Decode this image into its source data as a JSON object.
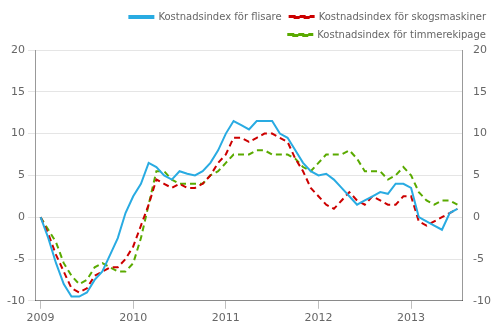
{
  "chart_data": {
    "type": "line",
    "x": [
      2009,
      2009.0833333333,
      2009.1666666667,
      2009.25,
      2009.3333333333,
      2009.4166666667,
      2009.5,
      2009.5833333333,
      2009.6666666667,
      2009.75,
      2009.8333333333,
      2009.9166666667,
      2010,
      2010.0833333333,
      2010.1666666667,
      2010.25,
      2010.3333333333,
      2010.4166666667,
      2010.5,
      2010.5833333333,
      2010.6666666667,
      2010.75,
      2010.8333333333,
      2010.9166666667,
      2011,
      2011.0833333333,
      2011.1666666667,
      2011.25,
      2011.3333333333,
      2011.4166666667,
      2011.5,
      2011.5833333333,
      2011.6666666667,
      2011.75,
      2011.8333333333,
      2011.9166666667,
      2012,
      2012.0833333333,
      2012.1666666667,
      2012.25,
      2012.3333333333,
      2012.4166666667,
      2012.5,
      2012.5833333333,
      2012.6666666667,
      2012.75,
      2012.8333333333,
      2012.9166666667,
      2013,
      2013.0833333333,
      2013.1666666667,
      2013.25,
      2013.3333333333,
      2013.4166666667,
      2013.5
    ],
    "series": [
      {
        "name": "Kostnadsindex för flisare",
        "color": "#29ABE2",
        "line_style": "solid",
        "values": [
          0.0,
          -2.5,
          -5.5,
          -8.0,
          -9.5,
          -9.5,
          -9.0,
          -7.5,
          -6.5,
          -4.5,
          -2.5,
          0.5,
          2.5,
          4.0,
          6.5,
          6.0,
          5.0,
          4.5,
          5.5,
          5.2,
          5.0,
          5.5,
          6.5,
          8.0,
          10.0,
          11.5,
          11.0,
          10.5,
          11.5,
          11.5,
          11.5,
          10.0,
          9.5,
          8.0,
          6.5,
          5.5,
          5.0,
          5.2,
          4.5,
          3.5,
          2.5,
          1.5,
          2.0,
          2.5,
          3.0,
          2.8,
          4.0,
          4.0,
          3.5,
          0.0,
          -0.5,
          -1.0,
          -1.5,
          0.5,
          1.0
        ]
      },
      {
        "name": "Kostnadsindex för skogsmaskiner",
        "color": "#CC0000",
        "line_style": "dashed",
        "values": [
          0.0,
          -2.0,
          -4.5,
          -6.5,
          -8.5,
          -9.0,
          -8.5,
          -7.0,
          -6.5,
          -6.0,
          -6.0,
          -5.0,
          -3.5,
          -1.0,
          1.5,
          4.5,
          4.0,
          3.5,
          4.0,
          3.5,
          3.5,
          4.0,
          5.0,
          6.5,
          7.5,
          9.5,
          9.5,
          9.0,
          9.5,
          10.0,
          10.0,
          9.5,
          9.0,
          7.0,
          5.5,
          3.5,
          2.5,
          1.5,
          1.0,
          2.0,
          3.0,
          2.0,
          1.5,
          2.5,
          2.0,
          1.5,
          1.5,
          2.5,
          2.5,
          -0.5,
          -1.0,
          -0.5,
          0.0,
          0.5,
          1.0
        ]
      },
      {
        "name": "Kostnadsindex för timmerekipage",
        "color": "#5AAA00",
        "line_style": "dashed",
        "values": [
          0.0,
          -1.5,
          -3.0,
          -5.5,
          -7.0,
          -8.0,
          -7.5,
          -6.0,
          -5.5,
          -6.0,
          -6.5,
          -6.5,
          -5.5,
          -2.5,
          1.5,
          5.5,
          5.5,
          4.5,
          4.0,
          4.0,
          4.0,
          4.0,
          5.0,
          5.5,
          6.5,
          7.5,
          7.5,
          7.5,
          8.0,
          8.0,
          7.5,
          7.5,
          7.5,
          7.0,
          6.0,
          5.5,
          6.5,
          7.5,
          7.5,
          7.5,
          8.0,
          7.0,
          5.5,
          5.5,
          5.5,
          4.5,
          5.0,
          6.0,
          5.0,
          3.0,
          2.0,
          1.5,
          2.0,
          2.0,
          1.5
        ]
      }
    ],
    "xlim": [
      2008.95,
      2013.55
    ],
    "xticks": [
      2009,
      2010,
      2011,
      2012,
      2013
    ],
    "ylim": [
      -10,
      20
    ],
    "yticks": [
      -10,
      -5,
      0,
      5,
      10,
      15,
      20
    ],
    "y2lim": [
      -10,
      20
    ],
    "y2ticks": [
      -10,
      -5,
      0,
      5,
      10,
      15,
      20
    ],
    "grid": true,
    "legend": "upper right"
  }
}
